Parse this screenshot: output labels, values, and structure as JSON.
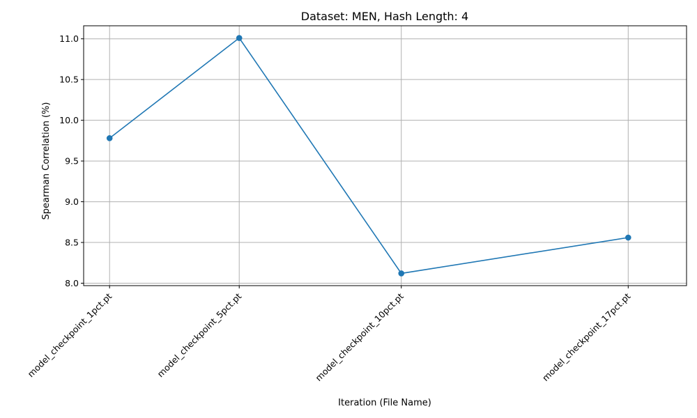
{
  "chart_data": {
    "type": "line",
    "title": "Dataset: MEN, Hash Length: 4",
    "xlabel": "Iteration (File Name)",
    "ylabel": "Spearman Correlation (%)",
    "x": [
      1,
      5,
      10,
      17
    ],
    "categories": [
      "model_checkpoint_1pct.pt",
      "model_checkpoint_5pct.pt",
      "model_checkpoint_10pct.pt",
      "model_checkpoint_17pct.pt"
    ],
    "series": [
      {
        "values": [
          9.78,
          11.01,
          8.12,
          8.56
        ],
        "color": "#1f77b4",
        "marker": "circle"
      }
    ],
    "xlim": [
      0.2,
      18.8
    ],
    "ylim": [
      7.97,
      11.16
    ],
    "yticks": [
      8.0,
      8.5,
      9.0,
      9.5,
      10.0,
      10.5,
      11.0
    ],
    "ytick_labels": [
      "8.0",
      "8.5",
      "9.0",
      "9.5",
      "10.0",
      "10.5",
      "11.0"
    ],
    "grid": true
  }
}
